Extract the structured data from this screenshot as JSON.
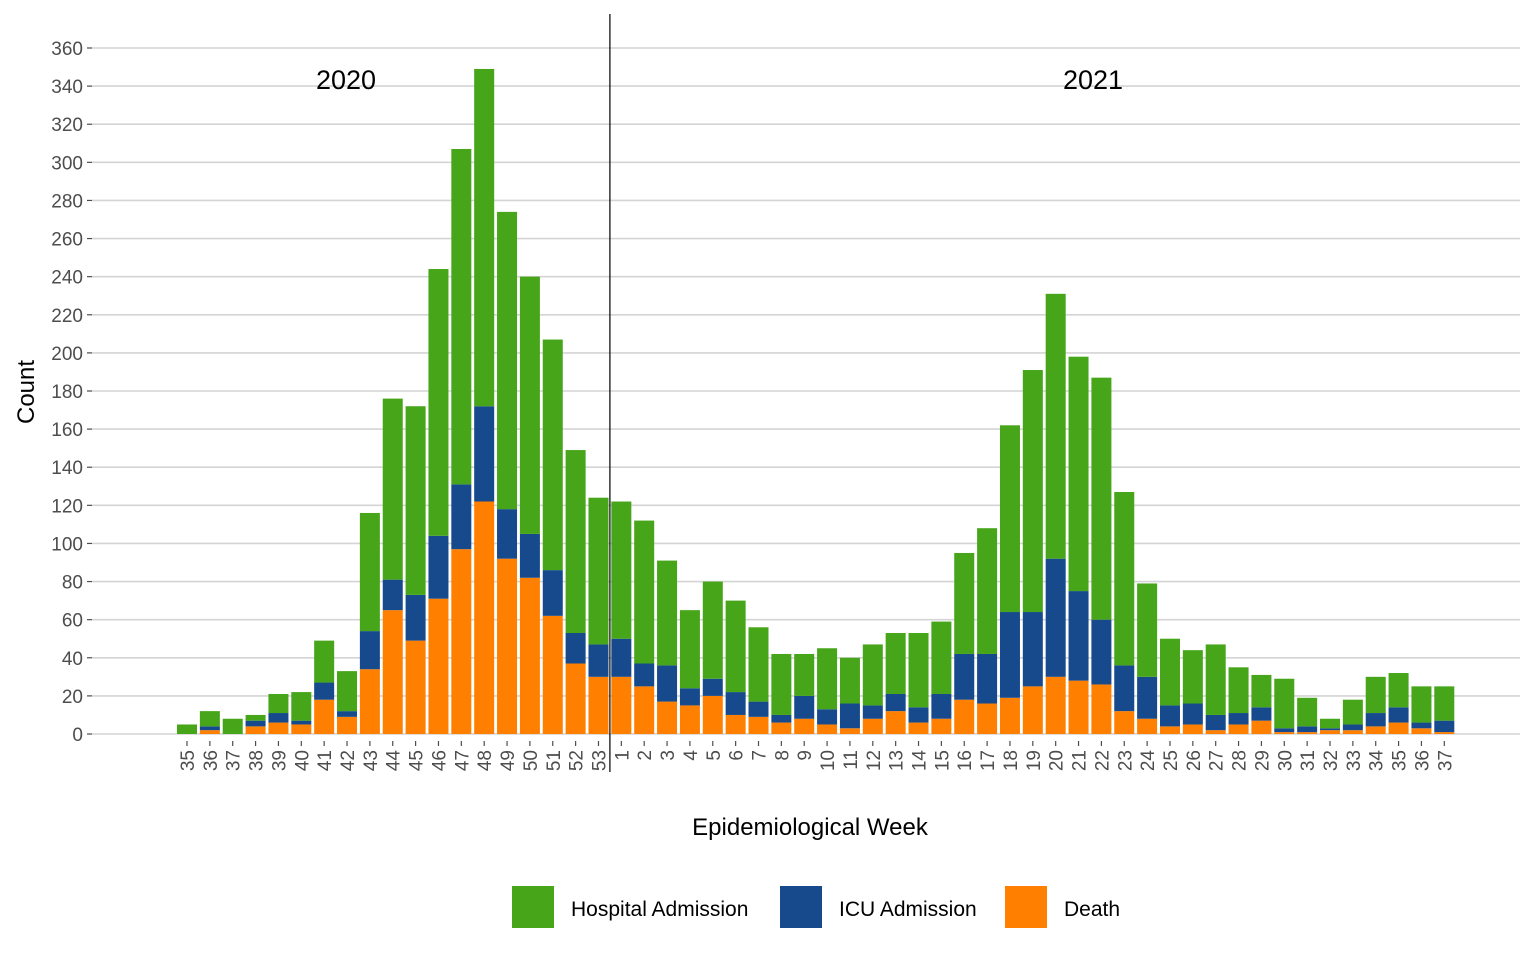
{
  "chart_data": {
    "type": "bar",
    "stacked": true,
    "xlabel": "Epidemiological Week",
    "ylabel": "Count",
    "ylim": [
      0,
      360
    ],
    "yticks": [
      0,
      20,
      40,
      60,
      80,
      100,
      120,
      140,
      160,
      180,
      200,
      220,
      240,
      260,
      280,
      300,
      320,
      340,
      360
    ],
    "grid": "horizontal",
    "legend_position": "bottom",
    "annotations": [
      "2020",
      "2021"
    ],
    "year_divider_before_category": "1",
    "categories": [
      "35",
      "36",
      "37",
      "38",
      "39",
      "40",
      "41",
      "42",
      "43",
      "44",
      "45",
      "46",
      "47",
      "48",
      "49",
      "50",
      "51",
      "52",
      "53",
      "1",
      "2",
      "3",
      "4",
      "5",
      "6",
      "7",
      "8",
      "9",
      "10",
      "11",
      "12",
      "13",
      "14",
      "15",
      "16",
      "17",
      "18",
      "19",
      "20",
      "21",
      "22",
      "23",
      "24",
      "25",
      "26",
      "27",
      "28",
      "29",
      "30",
      "31",
      "32",
      "33",
      "34",
      "35",
      "36",
      "37"
    ],
    "series": [
      {
        "name": "Death",
        "color": "#FF7F00",
        "values": [
          0,
          2,
          0,
          4,
          6,
          5,
          18,
          9,
          34,
          65,
          49,
          71,
          97,
          122,
          92,
          82,
          62,
          37,
          30,
          30,
          25,
          17,
          15,
          20,
          10,
          9,
          6,
          8,
          5,
          3,
          8,
          12,
          6,
          8,
          18,
          16,
          19,
          25,
          30,
          28,
          26,
          12,
          8,
          4,
          5,
          2,
          5,
          7,
          1,
          1,
          2,
          2,
          4,
          6,
          3,
          1
        ]
      },
      {
        "name": "ICU Admission",
        "color": "#164A8C",
        "values": [
          0,
          2,
          0,
          3,
          5,
          2,
          9,
          3,
          20,
          16,
          24,
          33,
          34,
          50,
          26,
          23,
          24,
          16,
          17,
          20,
          12,
          19,
          9,
          9,
          12,
          8,
          4,
          12,
          8,
          13,
          7,
          9,
          8,
          13,
          24,
          26,
          45,
          39,
          62,
          47,
          34,
          24,
          22,
          11,
          11,
          8,
          6,
          7,
          2,
          3,
          1,
          3,
          7,
          8,
          3,
          6
        ]
      },
      {
        "name": "Hospital Admission",
        "color": "#46A518",
        "values": [
          5,
          8,
          8,
          3,
          10,
          15,
          22,
          21,
          62,
          95,
          99,
          140,
          176,
          177,
          156,
          135,
          121,
          96,
          77,
          72,
          75,
          55,
          41,
          51,
          48,
          39,
          32,
          22,
          32,
          24,
          32,
          32,
          39,
          38,
          53,
          66,
          98,
          127,
          139,
          123,
          127,
          91,
          49,
          35,
          28,
          37,
          24,
          17,
          26,
          15,
          5,
          13,
          19,
          18,
          19,
          18
        ]
      }
    ],
    "legend_order": [
      "Hospital Admission",
      "ICU Admission",
      "Death"
    ]
  }
}
